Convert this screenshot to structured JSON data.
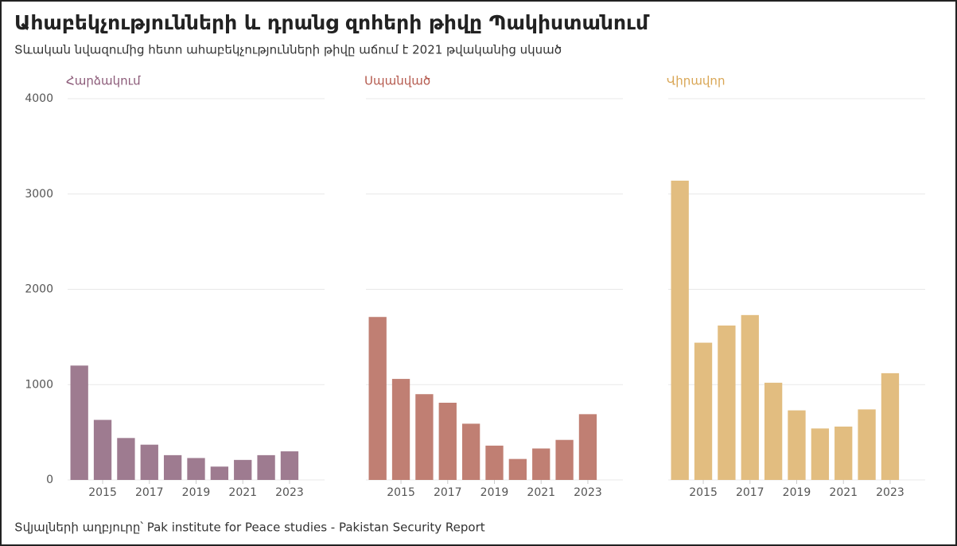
{
  "title": "Ահաբեկչությունների և դրանց զոհերի թիվը Պակիստանում",
  "subtitle": "Տևական նվազումից հետո ահաբեկչությունների թիվը աճում է 2021 թվականից սկսած",
  "source": "Տվյալների աղբյուրը՝ Pak institute for Peace studies - Pakistan Security Report",
  "chart_data": [
    {
      "type": "bar",
      "title": "Հարձակում",
      "color": "#9e7b90",
      "title_color": "#8b5a78",
      "x": [
        2014,
        2015,
        2016,
        2017,
        2018,
        2019,
        2020,
        2021,
        2022,
        2023
      ],
      "values": [
        1200,
        630,
        440,
        370,
        260,
        230,
        140,
        210,
        260,
        300
      ],
      "xlim": [
        2013.5,
        2024.5
      ],
      "xticks": [
        2015,
        2017,
        2019,
        2021,
        2023
      ],
      "ylim": [
        0,
        4000
      ],
      "yticks": [
        0,
        1000,
        2000,
        3000,
        4000
      ],
      "grid": true
    },
    {
      "type": "bar",
      "title": "Սպանված",
      "color": "#c07f73",
      "title_color": "#b55a4e",
      "x": [
        2014,
        2015,
        2016,
        2017,
        2018,
        2019,
        2020,
        2021,
        2022,
        2023
      ],
      "values": [
        1710,
        1060,
        900,
        810,
        590,
        360,
        220,
        330,
        420,
        690
      ],
      "xlim": [
        2013.5,
        2024.5
      ],
      "xticks": [
        2015,
        2017,
        2019,
        2021,
        2023
      ],
      "ylim": [
        0,
        4000
      ],
      "yticks": [
        0,
        1000,
        2000,
        3000,
        4000
      ],
      "grid": true
    },
    {
      "type": "bar",
      "title": "Վիրավոր",
      "color": "#e2bd80",
      "title_color": "#d9a655",
      "x": [
        2014,
        2015,
        2016,
        2017,
        2018,
        2019,
        2020,
        2021,
        2022,
        2023
      ],
      "values": [
        3140,
        1440,
        1620,
        1730,
        1020,
        730,
        540,
        560,
        740,
        1120
      ],
      "xlim": [
        2013.5,
        2024.5
      ],
      "xticks": [
        2015,
        2017,
        2019,
        2021,
        2023
      ],
      "ylim": [
        0,
        4000
      ],
      "yticks": [
        0,
        1000,
        2000,
        3000,
        4000
      ],
      "grid": true
    }
  ]
}
